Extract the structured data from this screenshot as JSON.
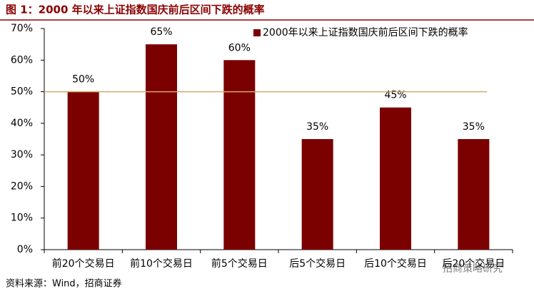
{
  "chart_data": {
    "type": "bar",
    "title": "图 1：2000 年以来上证指数国庆前后区间下跌的概率",
    "categories": [
      "前20个交易日",
      "前10个交易日",
      "前5个交易日",
      "后5个交易日",
      "后10个交易日",
      "后20个交易日"
    ],
    "series": [
      {
        "name": "2000年以来上证指数国庆前后区间下跌的概率",
        "color": "#7b0000",
        "values": [
          50,
          65,
          60,
          35,
          45,
          35
        ],
        "value_labels": [
          "50%",
          "65%",
          "60%",
          "35%",
          "45%",
          "35%"
        ]
      }
    ],
    "ylim": [
      0,
      70
    ],
    "yticks": [
      {
        "value": 0,
        "label": "0%"
      },
      {
        "value": 10,
        "label": "10%"
      },
      {
        "value": 20,
        "label": "20%"
      },
      {
        "value": 30,
        "label": "30%"
      },
      {
        "value": 40,
        "label": "40%"
      },
      {
        "value": 50,
        "label": "50%"
      },
      {
        "value": 60,
        "label": "60%"
      },
      {
        "value": 70,
        "label": "70%"
      }
    ],
    "reference_line": {
      "value": 50,
      "color": "#d9a766"
    },
    "legend": "top-right",
    "source": "资料来源：Wind，招商证券",
    "watermark": "招商策略研究"
  }
}
